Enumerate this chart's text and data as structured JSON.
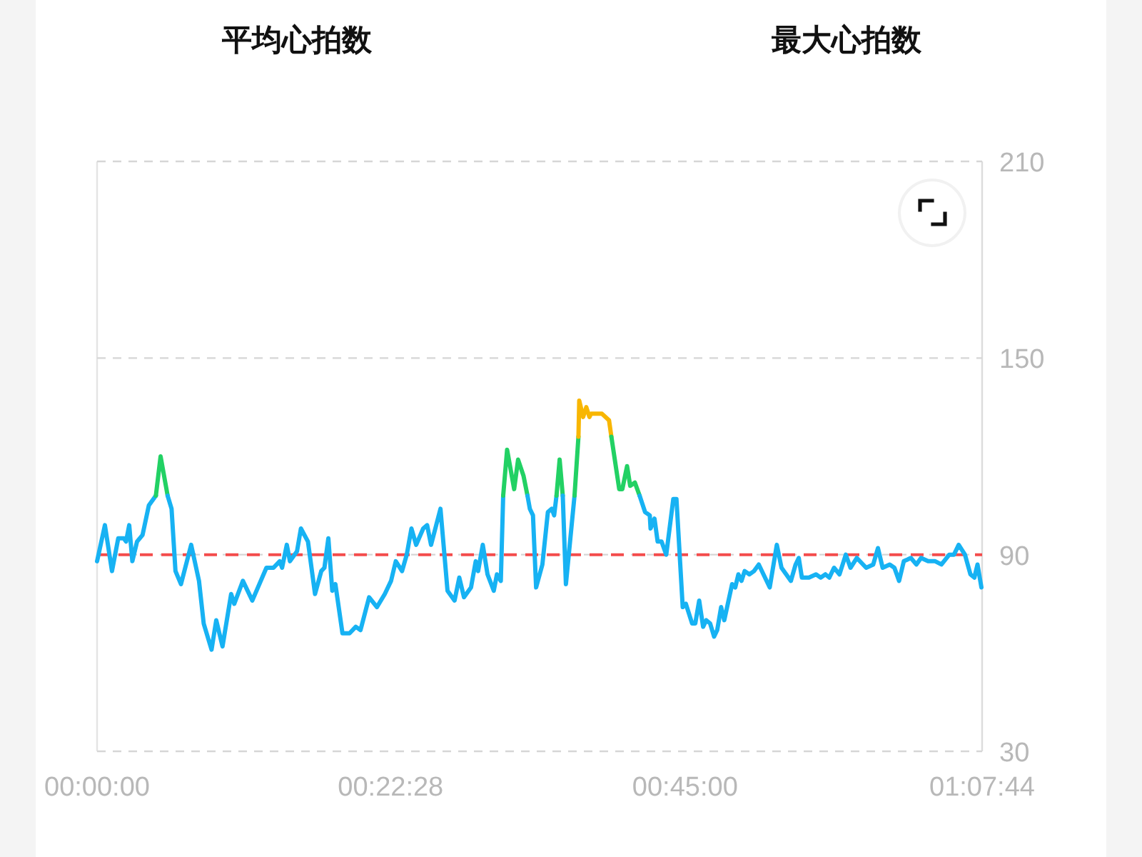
{
  "chart_data": {
    "type": "line",
    "annotations": [
      "平均心拍数",
      "最大心拍数"
    ],
    "xlim": [
      0,
      1.128889
    ],
    "xticks": [
      {
        "value": 0,
        "label": "00:00:00"
      },
      {
        "value": 0.374444,
        "label": "00:22:28"
      },
      {
        "value": 0.75,
        "label": "00:45:00"
      },
      {
        "value": 1.128889,
        "label": "01:07:44"
      }
    ],
    "ylim": [
      30,
      210
    ],
    "yticks": [
      30,
      90,
      150,
      210
    ],
    "grid": "y",
    "ref_lines": [
      {
        "axis": "y",
        "value": 90,
        "color": "#f44c4c",
        "line_style": "dashed"
      }
    ],
    "series": [
      {
        "color": "#17b2f3",
        "x": [
          0,
          0.01,
          0.019,
          0.027,
          0.034,
          0.037,
          0.041,
          0.045,
          0.051,
          0.058,
          0.066,
          0.075
        ],
        "values": [
          88,
          99,
          85,
          95,
          95,
          94,
          99,
          88,
          94,
          96,
          105,
          108
        ]
      },
      {
        "color": "#22d164",
        "x": [
          0.075,
          0.081,
          0.09
        ],
        "values": [
          108,
          120,
          108
        ]
      },
      {
        "color": "#17b2f3",
        "x": [
          0.09,
          0.095,
          0.1,
          0.107,
          0.12,
          0.13,
          0.136,
          0.146,
          0.152,
          0.16,
          0.171,
          0.175,
          0.186,
          0.198,
          0.216,
          0.225,
          0.233,
          0.236,
          0.242,
          0.246,
          0.255,
          0.26,
          0.269,
          0.278,
          0.286,
          0.29,
          0.295,
          0.3,
          0.304,
          0.313,
          0.322,
          0.33,
          0.336,
          0.347,
          0.357,
          0.367,
          0.375,
          0.381,
          0.389,
          0.395,
          0.401,
          0.407,
          0.416,
          0.421,
          0.426,
          0.438,
          0.447,
          0.456,
          0.462,
          0.468,
          0.477,
          0.483,
          0.486,
          0.492,
          0.498,
          0.506,
          0.51,
          0.515,
          0.518
        ],
        "values": [
          108,
          104,
          85,
          81,
          93,
          82,
          69,
          61,
          70,
          62,
          78,
          75,
          82,
          76,
          86,
          86,
          88,
          86,
          93,
          88,
          91,
          98,
          94,
          78,
          85,
          86,
          95,
          79,
          81,
          66,
          66,
          68,
          67,
          77,
          74,
          78,
          82,
          88,
          85,
          90,
          98,
          93,
          98,
          99,
          93,
          104,
          79,
          76,
          83,
          77,
          80,
          88,
          85,
          93,
          84,
          79,
          84,
          82,
          108
        ]
      },
      {
        "color": "#22d164",
        "x": [
          0.518,
          0.523,
          0.532,
          0.537,
          0.544,
          0.549
        ],
        "values": [
          108,
          122,
          110,
          119,
          114,
          108
        ]
      },
      {
        "color": "#17b2f3",
        "x": [
          0.549,
          0.552,
          0.556,
          0.56,
          0.568,
          0.575,
          0.58,
          0.583,
          0.586
        ],
        "values": [
          108,
          104,
          102,
          80,
          87,
          103,
          104,
          102,
          108
        ]
      },
      {
        "color": "#22d164",
        "x": [
          0.586,
          0.59,
          0.594
        ],
        "values": [
          108,
          119,
          108
        ]
      },
      {
        "color": "#17b2f3",
        "x": [
          0.594,
          0.598,
          0.609
        ],
        "values": [
          108,
          81,
          108
        ]
      },
      {
        "color": "#22d164",
        "x": [
          0.609,
          0.614
        ],
        "values": [
          108,
          126
        ]
      },
      {
        "color": "#f8b602",
        "x": [
          0.614,
          0.615,
          0.62,
          0.624,
          0.628,
          0.63,
          0.644,
          0.653,
          0.656
        ],
        "values": [
          126,
          137,
          132,
          135,
          132,
          133,
          133,
          131,
          126
        ]
      },
      {
        "color": "#22d164",
        "x": [
          0.656,
          0.666,
          0.67,
          0.676,
          0.68,
          0.686,
          0.692
        ],
        "values": [
          126,
          110,
          110,
          117,
          111,
          112,
          108
        ]
      },
      {
        "color": "#17b2f3",
        "x": [
          0.692,
          0.699,
          0.705,
          0.706,
          0.711,
          0.715,
          0.72,
          0.726,
          0.735,
          0.739,
          0.747,
          0.751,
          0.759,
          0.763,
          0.768,
          0.773,
          0.777,
          0.782,
          0.787,
          0.791,
          0.796,
          0.8,
          0.81,
          0.814,
          0.818,
          0.822,
          0.826,
          0.832,
          0.838,
          0.844,
          0.85,
          0.858,
          0.867,
          0.873,
          0.879,
          0.885,
          0.891,
          0.895,
          0.899,
          0.908,
          0.917,
          0.923,
          0.929,
          0.934,
          0.94,
          0.947,
          0.955,
          0.961,
          0.969,
          0.981,
          0.99,
          0.996,
          1.002,
          1.011,
          1.017,
          1.023,
          1.029,
          1.038,
          1.045,
          1.051,
          1.06,
          1.069,
          1.077,
          1.087,
          1.093,
          1.099,
          1.107,
          1.114,
          1.119,
          1.123,
          1.128
        ],
        "values": [
          108,
          103,
          102,
          98,
          101,
          94,
          94,
          90,
          107,
          107,
          74,
          75,
          69,
          69,
          76,
          68,
          70,
          69,
          65,
          67,
          74,
          70,
          81,
          80,
          84,
          82,
          85,
          84,
          85,
          87,
          84,
          80,
          93,
          86,
          84,
          82,
          87,
          89,
          83,
          83,
          84,
          83,
          84,
          83,
          86,
          84,
          90,
          86,
          89,
          86,
          87,
          92,
          86,
          87,
          86,
          82,
          88,
          89,
          87,
          89,
          88,
          88,
          87,
          90,
          90,
          93,
          90,
          84,
          83,
          87,
          80
        ]
      }
    ]
  }
}
